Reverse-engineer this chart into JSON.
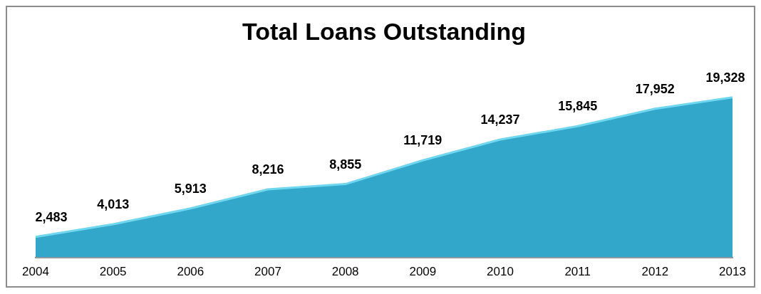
{
  "chart_data": {
    "type": "area",
    "title": "Total Loans Outstanding",
    "categories": [
      "2004",
      "2005",
      "2006",
      "2007",
      "2008",
      "2009",
      "2010",
      "2011",
      "2012",
      "2013"
    ],
    "values": [
      2483,
      4013,
      5913,
      8216,
      8855,
      11719,
      14237,
      15845,
      17952,
      19328
    ],
    "value_labels": [
      "2,483",
      "4,013",
      "5,913",
      "8,216",
      "8,855",
      "11,719",
      "14,237",
      "15,845",
      "17,952",
      "19,328"
    ],
    "color": "#33a7c9",
    "grid": false,
    "legend": false
  }
}
